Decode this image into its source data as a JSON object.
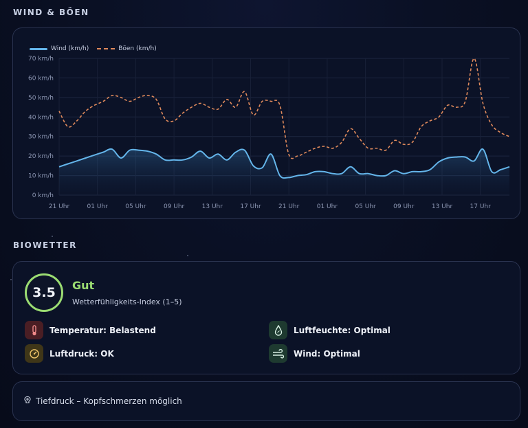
{
  "sections": {
    "wind_title": "WIND & BÖEN",
    "bio_title": "BIOWETTER"
  },
  "legend": {
    "wind": "Wind (km/h)",
    "gusts": "Böen (km/h)"
  },
  "colors": {
    "wind": "#64b5ea",
    "gusts": "#e08a5c",
    "good": "#9bdc72"
  },
  "chart_data": {
    "type": "line",
    "x_labels": [
      "21 Uhr",
      "01 Uhr",
      "05 Uhr",
      "09 Uhr",
      "13 Uhr",
      "17 Uhr",
      "21 Uhr",
      "01 Uhr",
      "05 Uhr",
      "09 Uhr",
      "13 Uhr",
      "17 Uhr"
    ],
    "y_tick_labels": [
      "0 km/h",
      "10 km/h",
      "20 km/h",
      "30 km/h",
      "40 km/h",
      "50 km/h",
      "60 km/h",
      "70 km/h"
    ],
    "ylim": [
      0,
      70
    ],
    "grid": true,
    "legend_position": "top-left",
    "series": [
      {
        "name": "Wind (km/h)",
        "values": [
          14.5,
          16,
          17.5,
          19,
          20.5,
          22,
          23.5,
          19,
          23,
          23,
          22.5,
          21,
          18,
          18,
          18,
          19.5,
          22.5,
          19,
          21,
          18,
          22,
          23,
          15,
          14,
          21,
          10,
          9,
          10,
          10.5,
          12,
          12,
          11,
          11,
          14.5,
          11,
          11,
          10,
          10,
          12.5,
          11,
          12,
          12,
          13,
          17,
          19,
          19.5,
          19.5,
          17.5,
          23.5,
          12,
          13,
          14.5
        ]
      },
      {
        "name": "Böen (km/h)",
        "values": [
          43,
          35,
          38,
          43,
          46,
          48,
          51,
          50,
          48,
          50,
          51,
          49,
          39,
          38,
          42,
          45,
          47,
          45,
          44,
          49,
          45,
          53,
          41,
          48,
          48,
          46,
          21,
          20,
          22,
          24,
          25,
          24,
          27,
          34,
          29,
          24,
          24,
          23,
          28,
          26,
          27,
          35,
          38,
          40,
          46,
          45,
          48,
          70,
          47,
          36,
          32,
          30
        ]
      }
    ]
  },
  "biowetter": {
    "score": "3.5",
    "rating": "Gut",
    "subtitle": "Wetterfühligkeits-Index (1–5)",
    "factors": [
      {
        "label": "Temperatur: Belastend",
        "icon": "thermometer-icon"
      },
      {
        "label": "Luftfeuchte: Optimal",
        "icon": "droplet-icon"
      },
      {
        "label": "Luftdruck: OK",
        "icon": "gauge-icon"
      },
      {
        "label": "Wind: Optimal",
        "icon": "wind-icon"
      }
    ]
  },
  "tip": {
    "icon": "brain-icon",
    "text": "Tiefdruck – Kopfschmerzen möglich"
  }
}
